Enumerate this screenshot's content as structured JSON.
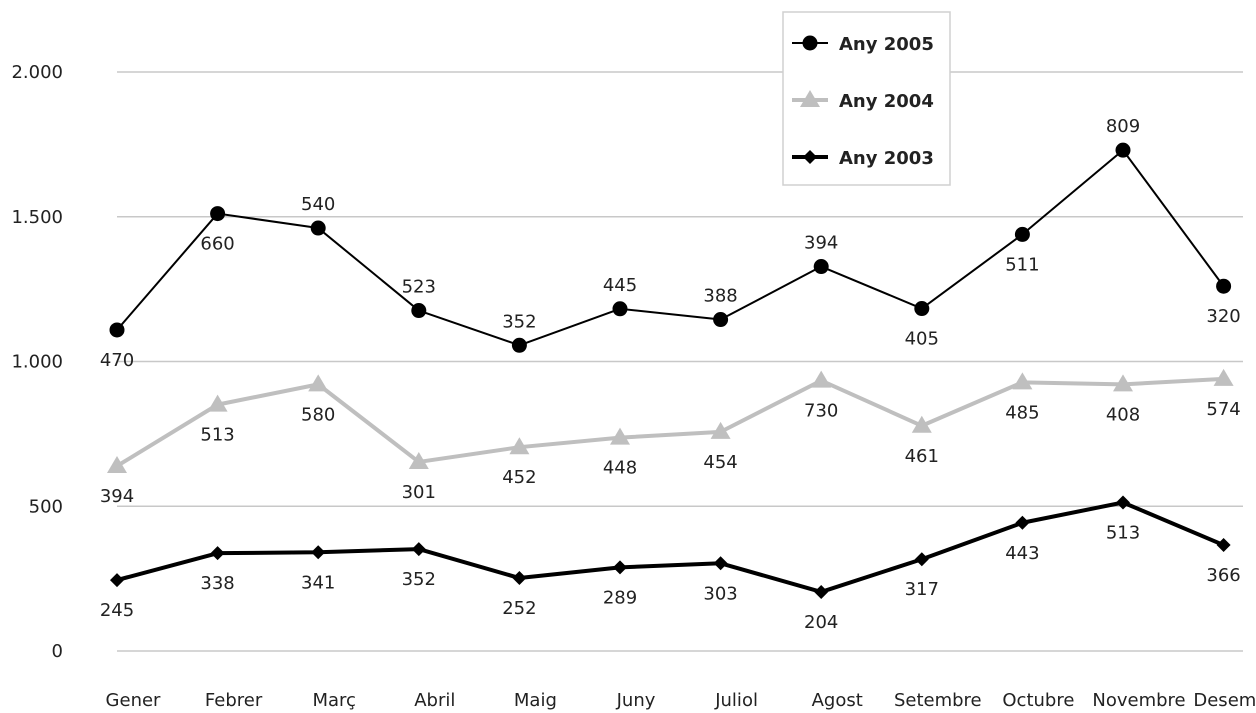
{
  "chart_data": {
    "type": "line",
    "categories": [
      "Gener",
      "Febrer",
      "Març",
      "Abril",
      "Maig",
      "Juny",
      "Juliol",
      "Agost",
      "Setembre",
      "Octubre",
      "Novembre",
      "Desembre"
    ],
    "ylim": [
      0,
      2000
    ],
    "y_ticks": [
      {
        "value": 0,
        "label": "0"
      },
      {
        "value": 500,
        "label": "500"
      },
      {
        "value": 1000,
        "label": "1.000"
      },
      {
        "value": 1500,
        "label": "1.500"
      },
      {
        "value": 2000,
        "label": "2.000"
      }
    ],
    "grid": true,
    "stacked": true,
    "legend_position": "top-right",
    "series": [
      {
        "name": "Any 2005",
        "color": "#000000",
        "marker": "circle",
        "values": [
          470,
          660,
          540,
          523,
          352,
          445,
          388,
          394,
          405,
          511,
          809,
          320
        ],
        "cumulative": [
          1109,
          1511,
          1461,
          1176,
          1056,
          1182,
          1145,
          1328,
          1183,
          1439,
          1730,
          1260
        ],
        "label_position": [
          "below",
          "below",
          "above",
          "above",
          "above",
          "above",
          "above",
          "above",
          "below",
          "below",
          "above",
          "below"
        ]
      },
      {
        "name": "Any 2004",
        "color": "#bfbfbf",
        "marker": "triangle",
        "values": [
          394,
          513,
          580,
          301,
          452,
          448,
          454,
          730,
          461,
          485,
          408,
          574
        ],
        "cumulative": [
          639,
          851,
          921,
          653,
          704,
          737,
          757,
          934,
          778,
          928,
          921,
          940
        ],
        "label_position": [
          "below",
          "below",
          "below",
          "below",
          "below",
          "below",
          "below",
          "below",
          "below",
          "below",
          "below",
          "below"
        ]
      },
      {
        "name": "Any 2003",
        "color": "#000000",
        "marker": "diamond",
        "values": [
          245,
          338,
          341,
          352,
          252,
          289,
          303,
          204,
          317,
          443,
          513,
          366
        ],
        "cumulative": [
          245,
          338,
          341,
          352,
          252,
          289,
          303,
          204,
          317,
          443,
          513,
          366
        ],
        "label_position": [
          "below",
          "below",
          "below",
          "below",
          "below",
          "below",
          "below",
          "below",
          "below",
          "below",
          "below",
          "below"
        ]
      }
    ]
  }
}
